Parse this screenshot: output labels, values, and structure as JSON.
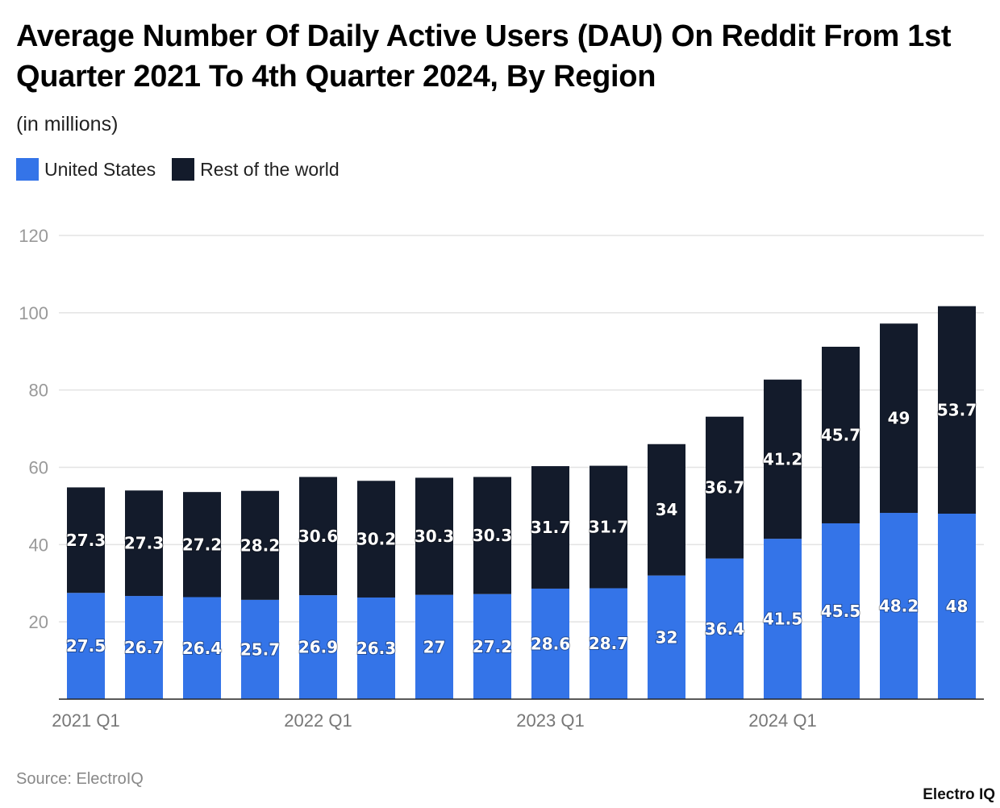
{
  "chart_data": {
    "type": "bar",
    "stacked": true,
    "title": "Average Number Of Daily Active Users (DAU) On Reddit From 1st Quarter 2021 To 4th Quarter 2024, By Region",
    "subtitle": "(in millions)",
    "ylim": [
      0,
      120
    ],
    "y_ticks": [
      20,
      40,
      60,
      80,
      100,
      120
    ],
    "grid": true,
    "legend_placement": "top-left",
    "x_tick_labels": [
      {
        "label": "2021 Q1",
        "index": 0
      },
      {
        "label": "2022 Q1",
        "index": 4
      },
      {
        "label": "2023 Q1",
        "index": 8
      },
      {
        "label": "2024 Q1",
        "index": 12
      }
    ],
    "series": [
      {
        "name": "United States",
        "color": "#3474e8",
        "values": [
          27.5,
          26.7,
          26.4,
          25.7,
          26.9,
          26.3,
          27,
          27.2,
          28.6,
          28.7,
          32,
          36.4,
          41.5,
          45.5,
          48.2,
          48
        ]
      },
      {
        "name": "Rest of the world",
        "color": "#131b2b",
        "values": [
          27.3,
          27.3,
          27.2,
          28.2,
          30.6,
          30.2,
          30.3,
          30.3,
          31.7,
          31.7,
          34,
          36.7,
          41.2,
          45.7,
          49,
          53.7
        ]
      }
    ]
  },
  "source": "Source: ElectroIQ",
  "logo": "Electro IQ"
}
